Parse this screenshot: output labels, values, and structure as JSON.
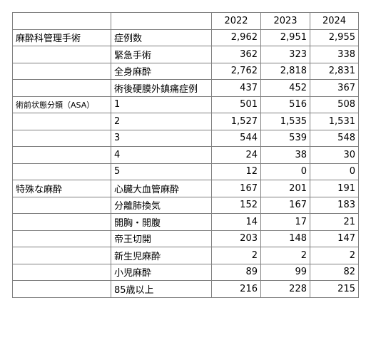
{
  "header": {
    "corner": "",
    "years": [
      "2022",
      "2023",
      "2024"
    ]
  },
  "sections": [
    {
      "title": "麻酔科管理手術",
      "rows": [
        {
          "label": "症例数",
          "values": [
            "2,962",
            "2,951",
            "2,955"
          ]
        },
        {
          "label": "緊急手術",
          "values": [
            "362",
            "323",
            "338"
          ]
        },
        {
          "label": "全身麻酔",
          "values": [
            "2,762",
            "2,818",
            "2,831"
          ]
        },
        {
          "label": "術後硬膜外鎮痛症例",
          "values": [
            "437",
            "452",
            "367"
          ]
        }
      ]
    },
    {
      "title": "術前状態分類（ASA）",
      "rows": [
        {
          "label": "1",
          "values": [
            "501",
            "516",
            "508"
          ]
        },
        {
          "label": "2",
          "values": [
            "1,527",
            "1,535",
            "1,531"
          ]
        },
        {
          "label": "3",
          "values": [
            "544",
            "539",
            "548"
          ]
        },
        {
          "label": "4",
          "values": [
            "24",
            "38",
            "30"
          ]
        },
        {
          "label": "5",
          "values": [
            "12",
            "0",
            "0"
          ]
        }
      ]
    },
    {
      "title": "特殊な麻酔",
      "rows": [
        {
          "label": "心臓大血管麻酔",
          "values": [
            "167",
            "201",
            "191"
          ]
        },
        {
          "label": "分離肺換気",
          "values": [
            "152",
            "167",
            "183"
          ]
        },
        {
          "label": "開胸・開腹",
          "values": [
            "14",
            "17",
            "21"
          ]
        },
        {
          "label": "帝王切開",
          "values": [
            "203",
            "148",
            "147"
          ]
        },
        {
          "label": "新生児麻酔",
          "values": [
            "2",
            "2",
            "2"
          ]
        },
        {
          "label": "小児麻酔",
          "values": [
            "89",
            "99",
            "82"
          ]
        },
        {
          "label": "85歳以上",
          "values": [
            "216",
            "228",
            "215"
          ]
        }
      ]
    }
  ]
}
